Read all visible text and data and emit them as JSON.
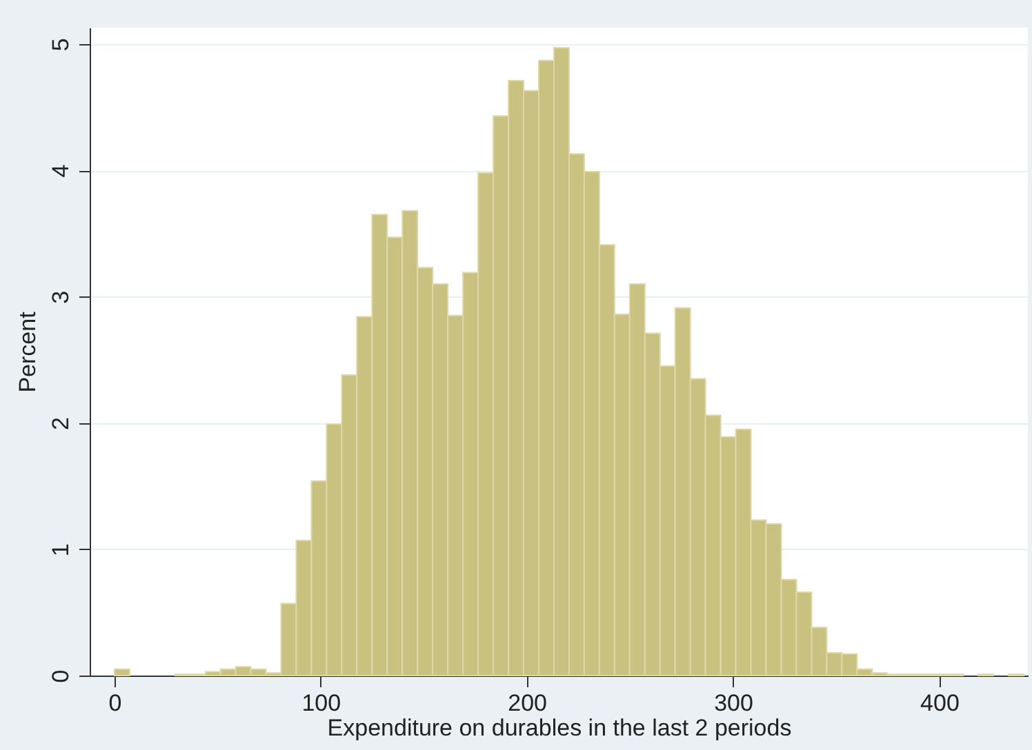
{
  "chart_data": {
    "type": "histogram",
    "xlabel": "Expenditure on durables in the last 2 periods",
    "ylabel": "Percent",
    "bins": [
      0,
      7.35,
      14.7,
      22.05,
      29.4,
      36.75,
      44.1,
      51.45,
      58.8,
      66.15,
      73.5,
      80.85,
      88.2,
      95.55,
      102.9,
      110.25,
      117.6,
      124.95,
      132.3,
      139.65,
      147,
      154.35,
      161.7,
      169.05,
      176.4,
      183.75,
      191.1,
      198.45,
      205.8,
      213.15,
      220.5,
      227.85,
      235.2,
      242.55,
      249.9,
      257.25,
      264.6,
      271.95,
      279.3,
      286.65,
      294,
      301.35,
      308.7,
      316.05,
      323.4,
      330.75,
      338.1,
      345.45,
      352.8,
      360.15,
      367.5,
      374.85,
      382.2,
      389.55,
      396.9,
      404.25,
      411.6,
      418.95,
      426.3,
      433.65,
      441
    ],
    "values": [
      0.05,
      0,
      0,
      0,
      0.01,
      0.01,
      0.03,
      0.05,
      0.07,
      0.05,
      0.02,
      0.57,
      1.07,
      1.54,
      1.99,
      2.38,
      2.84,
      3.65,
      3.47,
      3.68,
      3.23,
      3.1,
      2.85,
      3.19,
      3.98,
      4.43,
      4.71,
      4.63,
      4.87,
      4.97,
      4.13,
      3.99,
      3.41,
      2.86,
      3.1,
      2.71,
      2.45,
      2.91,
      2.35,
      2.06,
      1.89,
      1.95,
      1.23,
      1.2,
      0.76,
      0.66,
      0.38,
      0.18,
      0.17,
      0.05,
      0.02,
      0.01,
      0.01,
      0.01,
      0.01,
      0.01,
      0,
      0.01,
      0,
      0.01
    ],
    "color": "#c9c17f",
    "xlim": [
      -12,
      443
    ],
    "xticks": [
      0,
      100,
      200,
      300,
      400
    ],
    "ylim": [
      0,
      5.13
    ],
    "yticks": [
      0,
      1,
      2,
      3,
      4,
      5
    ],
    "grid": "y"
  }
}
